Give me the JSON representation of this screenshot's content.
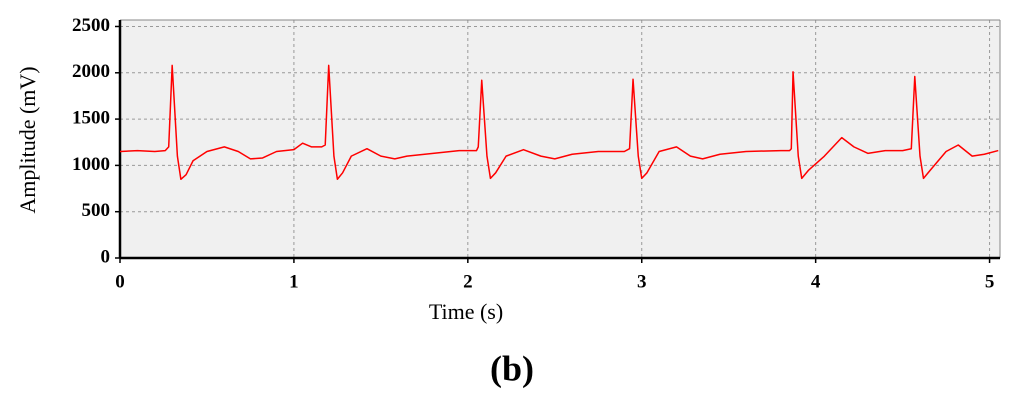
{
  "chart_data": {
    "type": "line",
    "caption": "(b)",
    "x_label": "Time (s)",
    "y_label": "Amplitude (mV)",
    "xlim": [
      0,
      5.06
    ],
    "ylim": [
      0,
      2570
    ],
    "xticks": [
      0,
      1,
      2,
      3,
      4,
      5
    ],
    "yticks": [
      0,
      500,
      1000,
      1500,
      2000,
      2500
    ],
    "grid": true,
    "series": [
      {
        "color": "#ff0000",
        "x": [
          0,
          0.1,
          0.2,
          0.26,
          0.28,
          0.3,
          0.33,
          0.35,
          0.38,
          0.42,
          0.5,
          0.6,
          0.68,
          0.75,
          0.82,
          0.9,
          1.0,
          1.05,
          1.1,
          1.16,
          1.18,
          1.2,
          1.23,
          1.25,
          1.28,
          1.33,
          1.42,
          1.5,
          1.58,
          1.65,
          1.8,
          1.95,
          2.05,
          2.06,
          2.08,
          2.11,
          2.13,
          2.16,
          2.22,
          2.32,
          2.42,
          2.5,
          2.6,
          2.75,
          2.9,
          2.93,
          2.95,
          2.98,
          3.0,
          3.03,
          3.1,
          3.2,
          3.28,
          3.35,
          3.45,
          3.6,
          3.8,
          3.85,
          3.86,
          3.87,
          3.9,
          3.92,
          3.96,
          4.05,
          4.15,
          4.22,
          4.3,
          4.4,
          4.5,
          4.55,
          4.57,
          4.6,
          4.62,
          4.66,
          4.75,
          4.82,
          4.9,
          4.97,
          5.05
        ],
        "values": [
          1150,
          1160,
          1150,
          1160,
          1200,
          2080,
          1100,
          850,
          900,
          1050,
          1150,
          1200,
          1150,
          1070,
          1080,
          1150,
          1170,
          1240,
          1200,
          1200,
          1220,
          2080,
          1100,
          850,
          920,
          1100,
          1180,
          1100,
          1070,
          1100,
          1130,
          1160,
          1160,
          1200,
          1920,
          1100,
          860,
          920,
          1100,
          1170,
          1100,
          1070,
          1120,
          1150,
          1150,
          1180,
          1930,
          1100,
          860,
          920,
          1150,
          1200,
          1100,
          1070,
          1120,
          1150,
          1160,
          1160,
          1180,
          2010,
          1100,
          860,
          950,
          1100,
          1300,
          1200,
          1130,
          1160,
          1160,
          1180,
          1960,
          1100,
          860,
          950,
          1150,
          1220,
          1100,
          1120,
          1160
        ]
      }
    ]
  }
}
